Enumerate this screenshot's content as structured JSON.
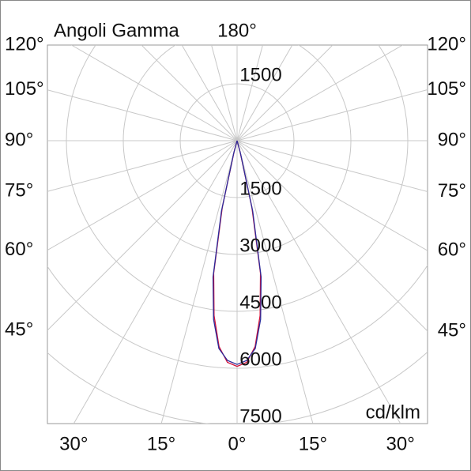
{
  "chart_data": {
    "type": "polar",
    "title": "Angoli Gamma",
    "unit": "cd/klm",
    "rlim": [
      0,
      7500
    ],
    "rticks": [
      1500,
      3000,
      4500,
      6000,
      7500
    ],
    "angle_ticks": [
      {
        "value": 0,
        "label": "0°"
      },
      {
        "value": 15,
        "label": "15°"
      },
      {
        "value": 30,
        "label": "30°"
      },
      {
        "value": 45,
        "label": "45°"
      },
      {
        "value": 60,
        "label": "60°"
      },
      {
        "value": 75,
        "label": "75°"
      },
      {
        "value": 90,
        "label": "90°"
      },
      {
        "value": 105,
        "label": "105°"
      },
      {
        "value": 120,
        "label": "120°"
      },
      {
        "value": 180,
        "label": "180°"
      }
    ],
    "angles": [
      0,
      2.5,
      5,
      7.5,
      10,
      12.5,
      15,
      20
    ],
    "series": [
      {
        "color": "#d0103a",
        "values": [
          5950,
          5850,
          5450,
          4650,
          3550,
          1800,
          300,
          0
        ]
      },
      {
        "color": "#2a2a9a",
        "values": [
          5900,
          5800,
          5500,
          4750,
          3650,
          1900,
          350,
          0
        ]
      }
    ],
    "grid": true
  }
}
